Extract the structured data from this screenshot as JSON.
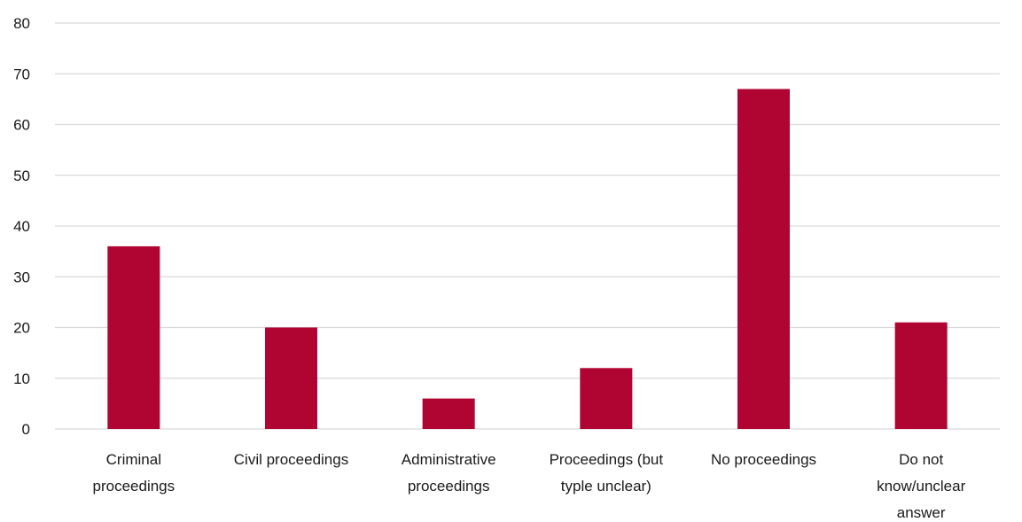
{
  "chart_data": {
    "type": "bar",
    "categories": [
      [
        "Criminal",
        "proceedings"
      ],
      [
        "Civil proceedings"
      ],
      [
        "Administrative",
        "proceedings"
      ],
      [
        "Proceedings (but",
        "typle unclear)"
      ],
      [
        "No proceedings"
      ],
      [
        "Do not",
        "know/unclear",
        "answer"
      ]
    ],
    "values": [
      36,
      20,
      6,
      12,
      67,
      21
    ],
    "ylim": [
      0,
      80
    ],
    "yticks": [
      0,
      10,
      20,
      30,
      40,
      50,
      60,
      70,
      80
    ],
    "title": "",
    "xlabel": "",
    "ylabel": "",
    "grid": true,
    "legend": "none",
    "bar_color": "#b00432",
    "grid_color": "#d9d9d9"
  }
}
